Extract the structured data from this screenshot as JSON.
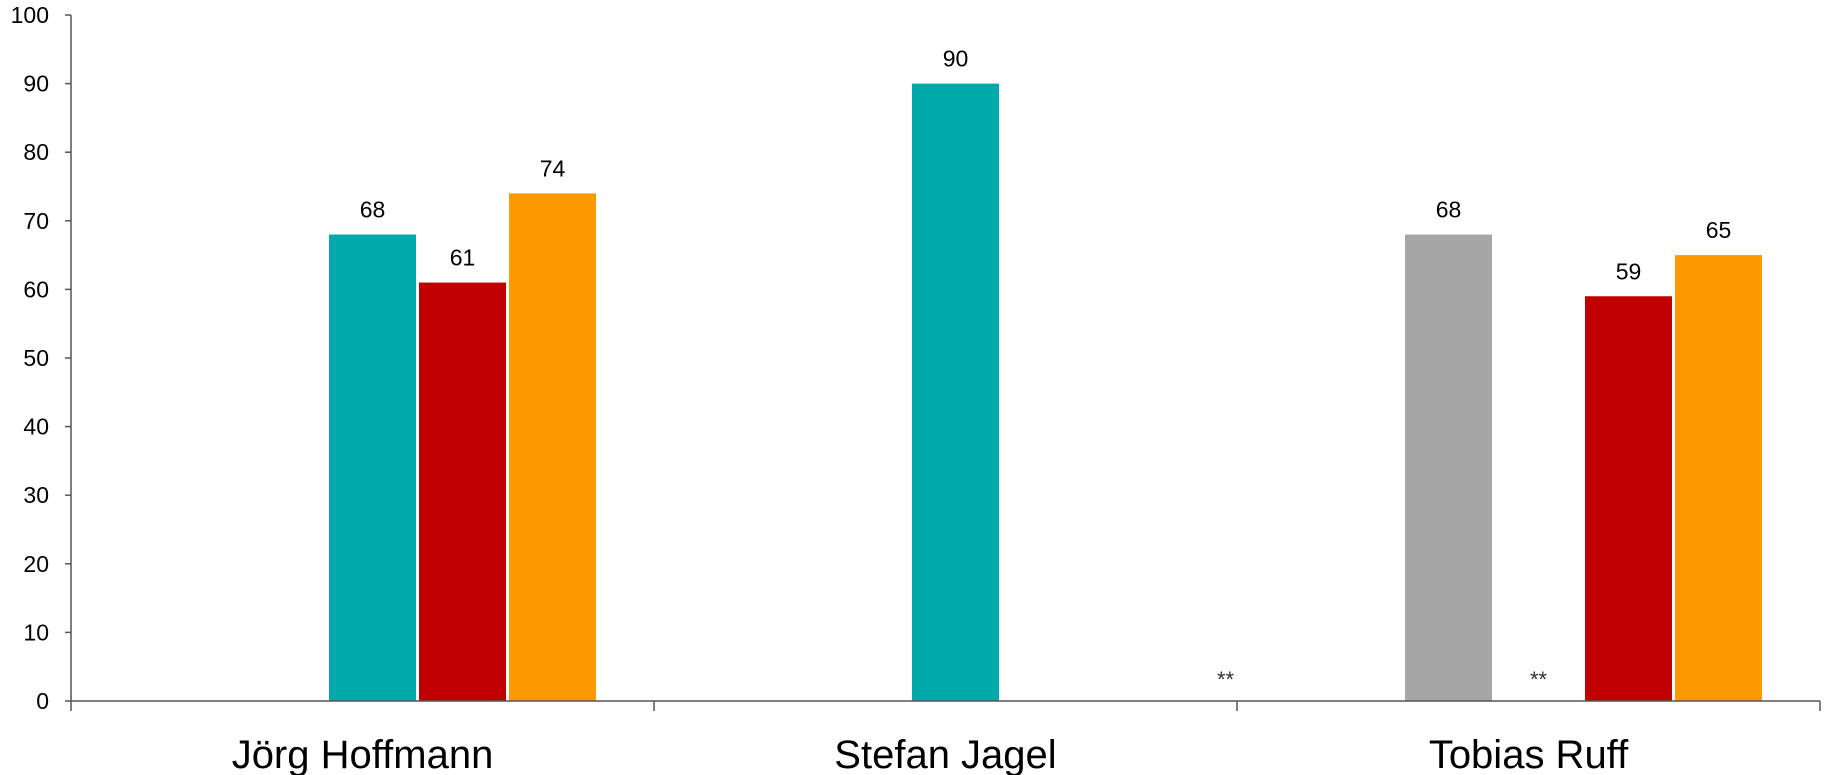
{
  "chart_data": {
    "type": "bar",
    "title": "",
    "xlabel": "",
    "ylabel": "",
    "ylim": [
      0,
      100
    ],
    "yticks": [
      0,
      10,
      20,
      30,
      40,
      50,
      60,
      70,
      80,
      90,
      100
    ],
    "grid": false,
    "legend": "none",
    "categories": [
      "Jörg Hoffmann",
      "Stefan Jagel",
      "Tobias Ruff"
    ],
    "groups": [
      {
        "category": "Jörg Hoffmann",
        "bars": [
          {
            "slot": 1,
            "value": 68,
            "label": "68",
            "color": "#00a9aa"
          },
          {
            "slot": 2,
            "value": 61,
            "label": "61",
            "color": "#c00000"
          },
          {
            "slot": 3,
            "value": 74,
            "label": "74",
            "color": "#ff9900"
          }
        ],
        "notes": []
      },
      {
        "category": "Stefan Jagel",
        "bars": [
          {
            "slot": 1,
            "value": 90,
            "label": "90",
            "color": "#00a9aa"
          }
        ],
        "notes": [
          {
            "slot": 4,
            "text": "**"
          }
        ]
      },
      {
        "category": "Tobias Ruff",
        "bars": [
          {
            "slot": 0,
            "value": 68,
            "label": "68",
            "color": "#a6a6a6"
          },
          {
            "slot": 2,
            "value": 59,
            "label": "59",
            "color": "#c00000"
          },
          {
            "slot": 3,
            "value": 65,
            "label": "65",
            "color": "#ff9900"
          }
        ],
        "notes": [
          {
            "slot": 1,
            "text": "**"
          }
        ]
      }
    ]
  }
}
